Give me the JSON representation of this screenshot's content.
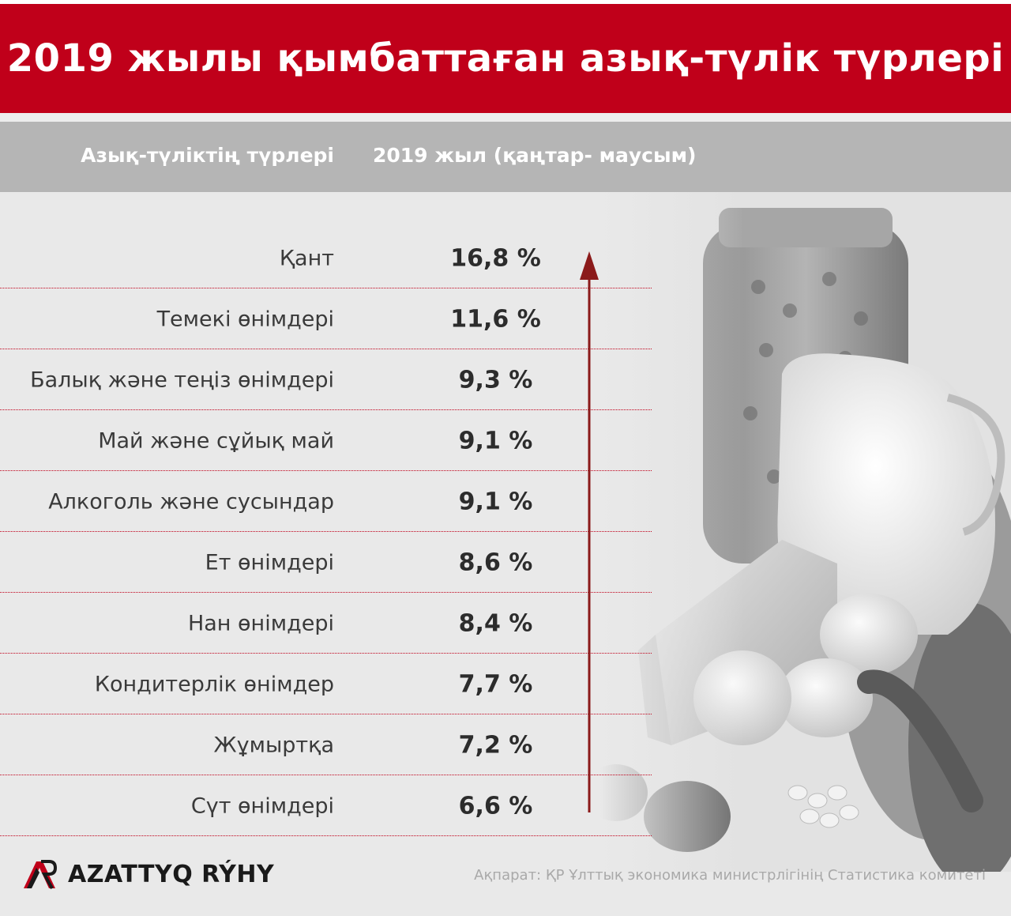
{
  "title": "2019 жылы қымбаттаған азық-түлік түрлері",
  "header": {
    "col1": "Азық-түліктің түрлері",
    "col2": "2019 жыл (қаңтар- маусым)"
  },
  "chart_data": {
    "type": "table",
    "title": "2019 жылы қымбаттаған азық-түлік түрлері",
    "columns": [
      "Азық-түліктің түрлері",
      "2019 жыл (қаңтар- маусым)"
    ],
    "rows": [
      {
        "label": "Қант",
        "value_text": "16,8 %",
        "value": 16.8
      },
      {
        "label": "Темекі өнімдері",
        "value_text": "11,6 %",
        "value": 11.6
      },
      {
        "label": "Балық және теңіз өнімдері",
        "value_text": "9,3 %",
        "value": 9.3
      },
      {
        "label": "Май және сұйық май",
        "value_text": "9,1 %",
        "value": 9.1
      },
      {
        "label": "Алкоголь және сусындар",
        "value_text": "9,1 %",
        "value": 9.1
      },
      {
        "label": "Ет өнімдері",
        "value_text": "8,6 %",
        "value": 8.6
      },
      {
        "label": "Нан өнімдері",
        "value_text": "8,4 %",
        "value": 8.4
      },
      {
        "label": "Кондитерлік өнімдер",
        "value_text": "7,7 %",
        "value": 7.7
      },
      {
        "label": "Жұмыртқа",
        "value_text": "7,2 %",
        "value": 7.2
      },
      {
        "label": "Сүт өнімдері",
        "value_text": "6,6 %",
        "value": 6.6
      }
    ]
  },
  "footer": {
    "brand": "AZATTYQ RÝHY",
    "source": "Ақпарат: ҚР Ұлттық экономика министрлігінің Статистика комитеті"
  },
  "colors": {
    "accent": "#c0001a",
    "header_band": "#b5b5b5",
    "background": "#e9e9e9"
  }
}
